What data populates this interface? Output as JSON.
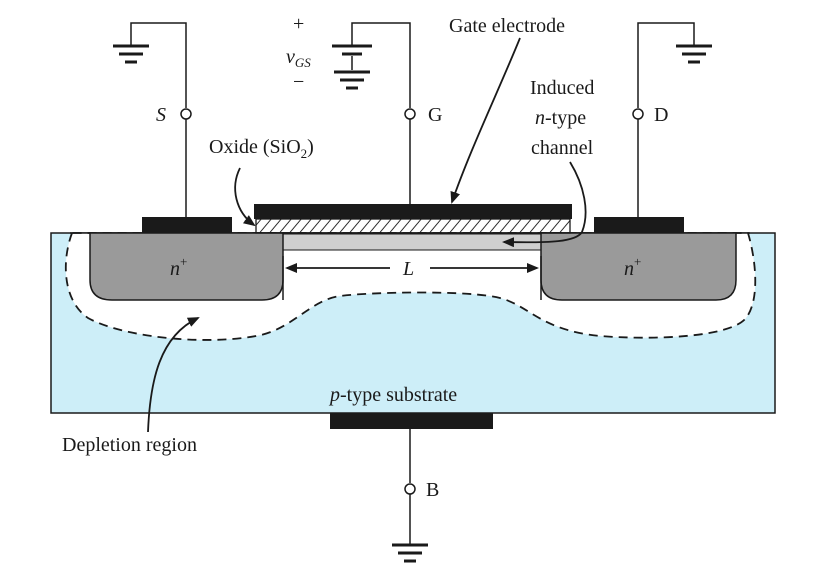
{
  "labels": {
    "gate_electrode": "Gate electrode",
    "vgs_plus": "+",
    "vgs_v": "v",
    "vgs_sub": "GS",
    "vgs_minus": "−",
    "induced": "Induced",
    "ntype_n": "n",
    "ntype_rest": "-type",
    "channel": "channel",
    "oxide_main": "Oxide (SiO",
    "oxide_sub": "2",
    "oxide_close": ")",
    "source": "S",
    "gate": "G",
    "drain": "D",
    "body": "B",
    "nplus_n": "n",
    "nplus_sup": "+",
    "length": "L",
    "substrate_p": "p",
    "substrate_rest": "-type substrate",
    "depletion": "Depletion region"
  },
  "colors": {
    "substrate": "#cdeef8",
    "n_region": "#9a9a9a",
    "channel": "#cfcfcf",
    "metal": "#1a1a1a",
    "oxide_bg": "#ffffff"
  }
}
